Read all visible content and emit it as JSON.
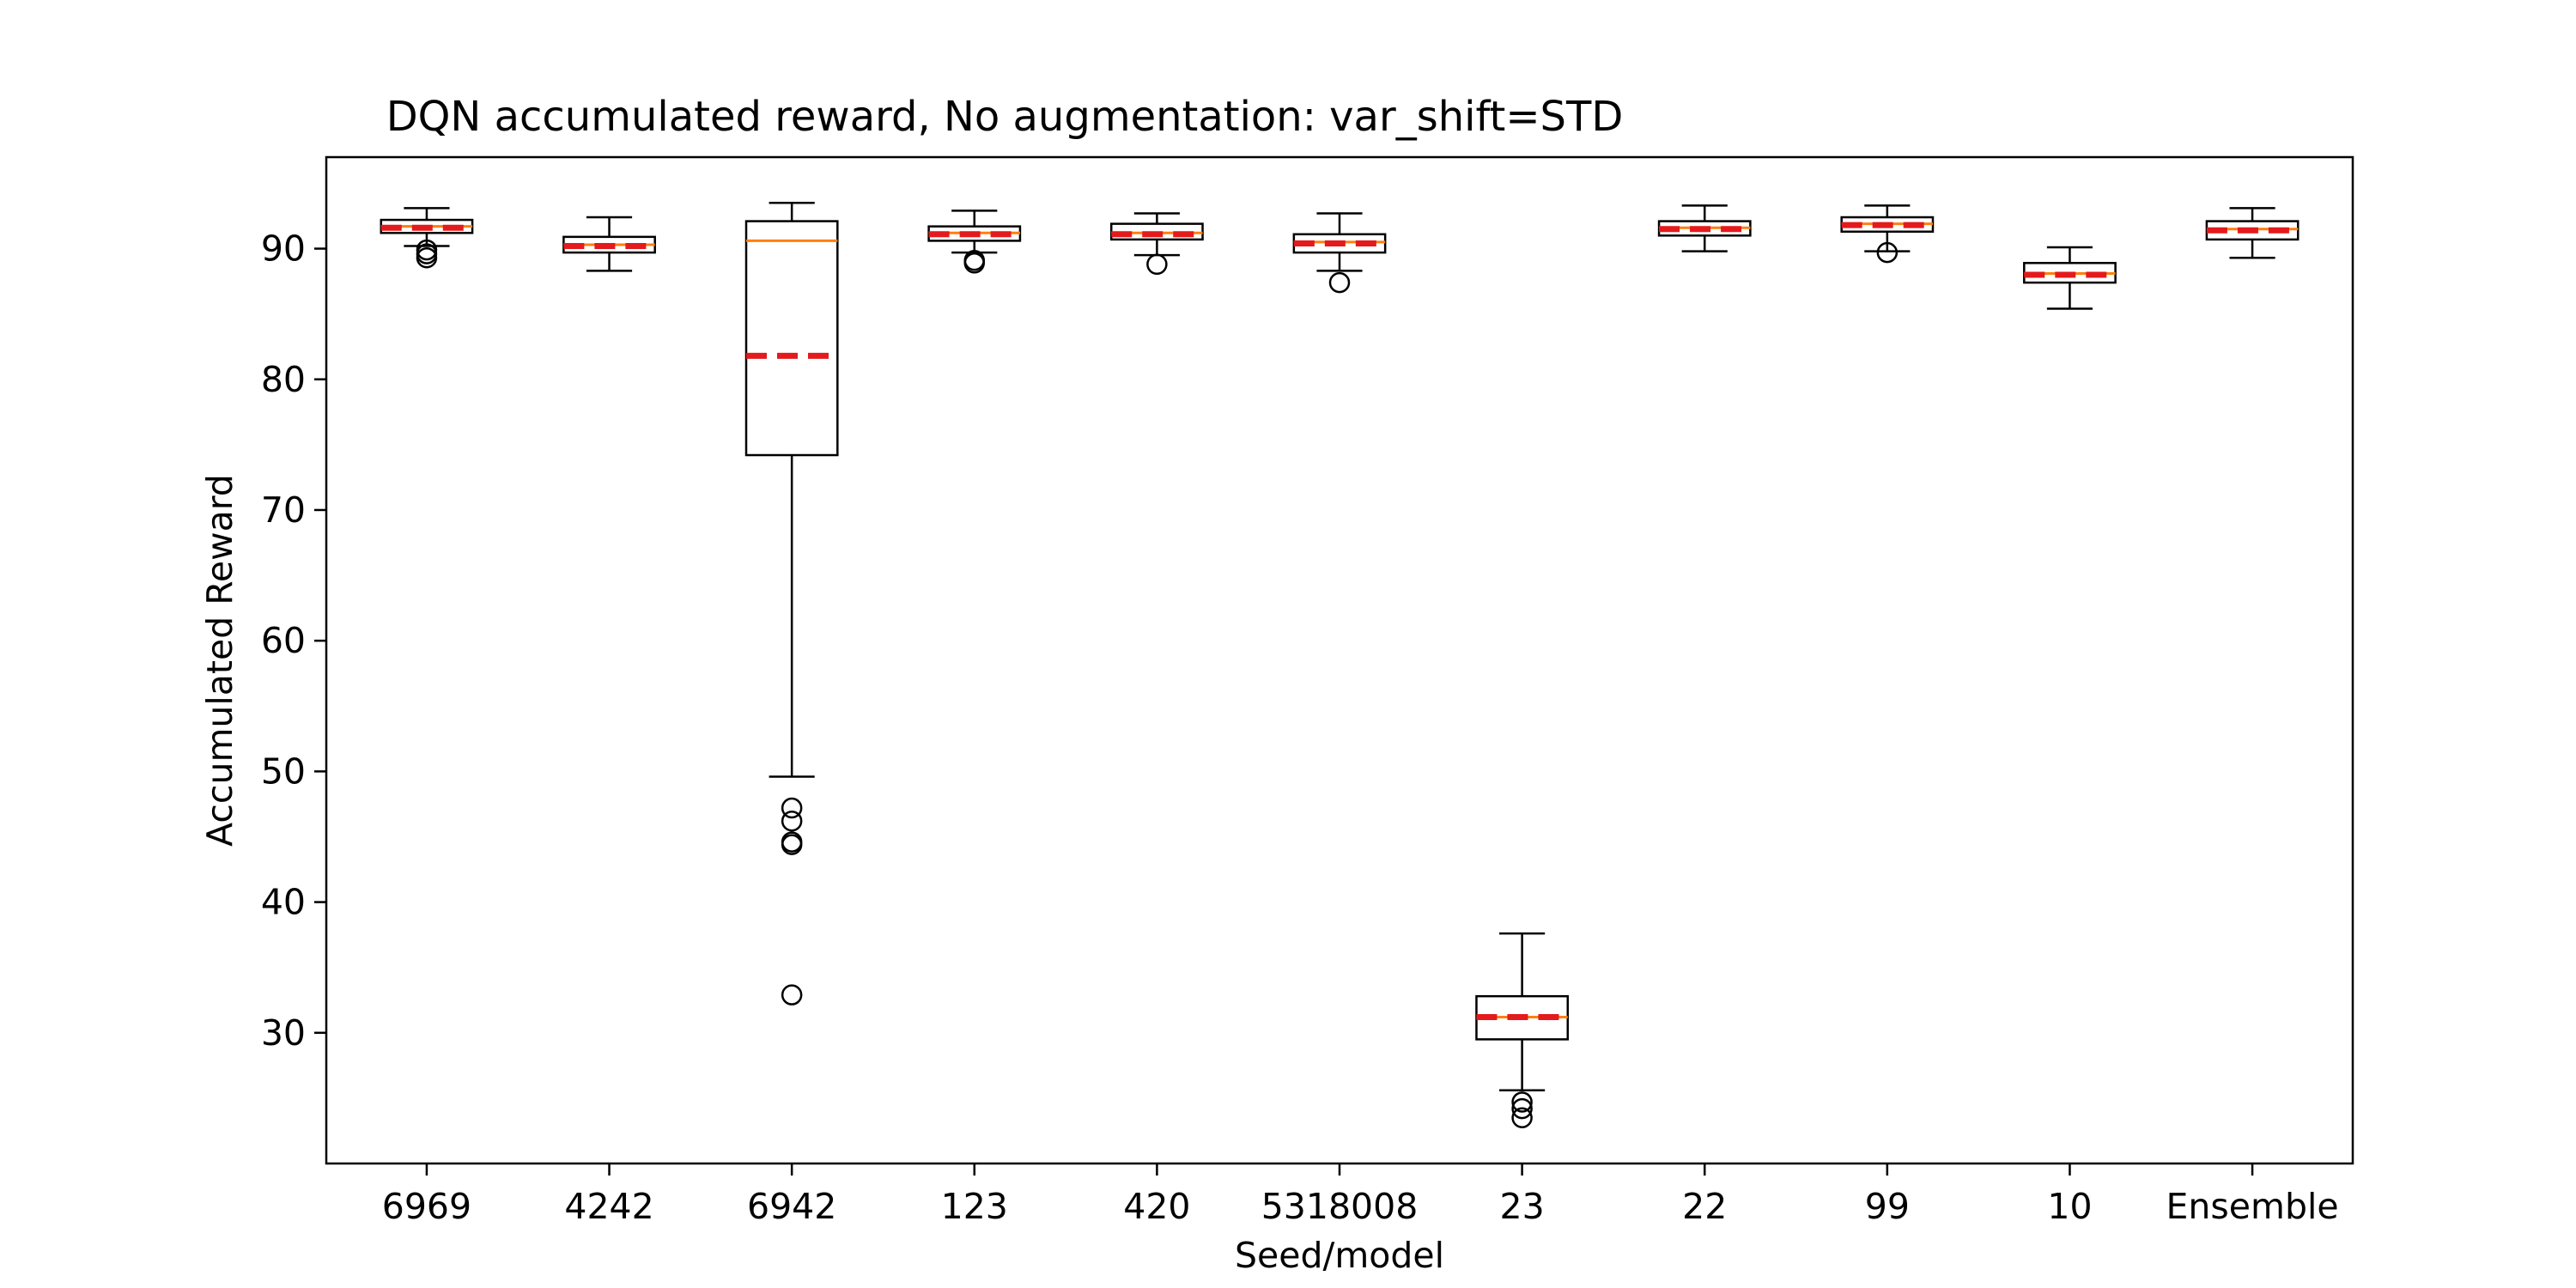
{
  "chart_data": {
    "type": "box",
    "title": "DQN accumulated reward, No augmentation: var_shift=STD",
    "xlabel": "Seed/model",
    "ylabel": "Accumulated Reward",
    "ylim": [
      20,
      97
    ],
    "yticks": [
      30,
      40,
      50,
      60,
      70,
      80,
      90
    ],
    "grid": false,
    "categories": [
      "6969",
      "4242",
      "6942",
      "123",
      "420",
      "5318008",
      "23",
      "22",
      "99",
      "10",
      "Ensemble"
    ],
    "boxes": [
      {
        "category": "6969",
        "whisker_low": 90.2,
        "q1": 91.2,
        "median": 91.7,
        "mean": 91.6,
        "q3": 92.2,
        "whisker_high": 93.1,
        "outliers": [
          89.3,
          89.6,
          89.9
        ]
      },
      {
        "category": "4242",
        "whisker_low": 88.3,
        "q1": 89.7,
        "median": 90.3,
        "mean": 90.2,
        "q3": 90.9,
        "whisker_high": 92.4,
        "outliers": []
      },
      {
        "category": "6942",
        "whisker_low": 49.6,
        "q1": 74.2,
        "median": 90.6,
        "mean": 81.8,
        "q3": 92.1,
        "whisker_high": 93.5,
        "outliers": [
          47.2,
          46.2,
          44.6,
          44.4,
          32.9
        ]
      },
      {
        "category": "123",
        "whisker_low": 89.7,
        "q1": 90.6,
        "median": 91.2,
        "mean": 91.1,
        "q3": 91.7,
        "whisker_high": 92.9,
        "outliers": [
          88.9,
          89.1
        ]
      },
      {
        "category": "420",
        "whisker_low": 89.5,
        "q1": 90.7,
        "median": 91.2,
        "mean": 91.1,
        "q3": 91.9,
        "whisker_high": 92.7,
        "outliers": [
          88.8
        ]
      },
      {
        "category": "5318008",
        "whisker_low": 88.3,
        "q1": 89.7,
        "median": 90.5,
        "mean": 90.4,
        "q3": 91.1,
        "whisker_high": 92.7,
        "outliers": [
          87.4
        ]
      },
      {
        "category": "23",
        "whisker_low": 25.6,
        "q1": 29.5,
        "median": 31.2,
        "mean": 31.2,
        "q3": 32.8,
        "whisker_high": 37.6,
        "outliers": [
          24.7,
          24.2,
          23.5
        ]
      },
      {
        "category": "22",
        "whisker_low": 89.8,
        "q1": 91.0,
        "median": 91.6,
        "mean": 91.5,
        "q3": 92.1,
        "whisker_high": 93.3,
        "outliers": []
      },
      {
        "category": "99",
        "whisker_low": 89.8,
        "q1": 91.3,
        "median": 91.9,
        "mean": 91.8,
        "q3": 92.4,
        "whisker_high": 93.3,
        "outliers": [
          89.7
        ]
      },
      {
        "category": "10",
        "whisker_low": 85.4,
        "q1": 87.4,
        "median": 88.1,
        "mean": 88.0,
        "q3": 88.9,
        "whisker_high": 90.1,
        "outliers": []
      },
      {
        "category": "Ensemble",
        "whisker_low": 89.3,
        "q1": 90.7,
        "median": 91.5,
        "mean": 91.4,
        "q3": 92.1,
        "whisker_high": 93.1,
        "outliers": []
      }
    ],
    "colors": {
      "median": "#ff7f0e",
      "mean": "#e41a1c",
      "box": "#000000"
    }
  }
}
